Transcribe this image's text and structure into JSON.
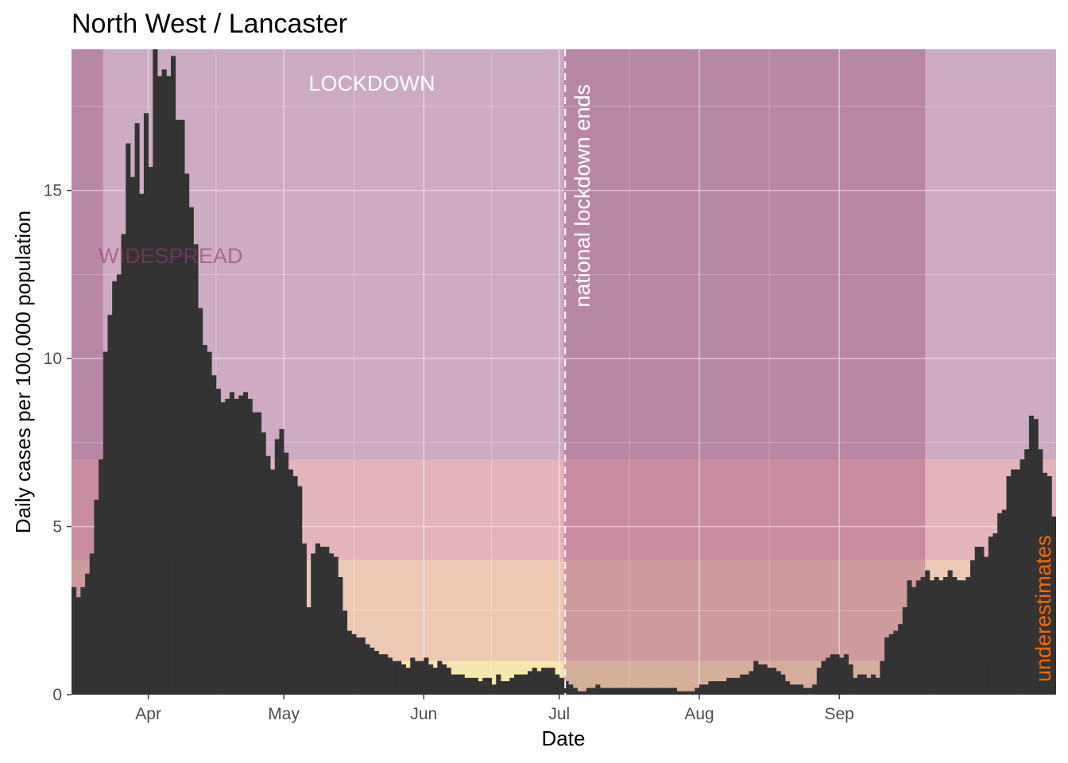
{
  "chart_data": {
    "type": "bar",
    "title": "North West / Lancaster",
    "xlabel": "Date",
    "ylabel": "Daily cases per 100,000 population",
    "x_ticks": [
      "Apr",
      "May",
      "Jun",
      "Jul",
      "Aug",
      "Sep"
    ],
    "x_tick_days": [
      17,
      47,
      78,
      108,
      139,
      170
    ],
    "y_ticks": [
      0,
      5,
      10,
      15
    ],
    "ylim": [
      0,
      19.2
    ],
    "grid": true,
    "first_day": "2020-03-15",
    "values": [
      3.2,
      2.9,
      3.2,
      3.6,
      4.2,
      5.8,
      7.0,
      10.2,
      11.3,
      12.3,
      12.5,
      13.7,
      16.4,
      15.4,
      17.0,
      14.9,
      17.3,
      15.7,
      19.2,
      18.4,
      18.6,
      18.4,
      19.0,
      17.1,
      17.1,
      15.5,
      14.5,
      13.4,
      11.5,
      10.4,
      10.2,
      9.5,
      9.1,
      8.7,
      8.8,
      9.0,
      8.8,
      8.9,
      9.0,
      8.8,
      8.4,
      8.4,
      7.8,
      7.1,
      6.7,
      7.6,
      7.9,
      7.2,
      6.7,
      6.5,
      6.2,
      4.5,
      2.6,
      4.2,
      4.5,
      4.4,
      4.4,
      4.2,
      4.1,
      3.5,
      2.5,
      1.9,
      1.8,
      1.7,
      1.7,
      1.5,
      1.4,
      1.3,
      1.2,
      1.2,
      1.1,
      1.0,
      1.0,
      0.9,
      0.8,
      1.1,
      1.0,
      1.0,
      1.1,
      0.9,
      0.8,
      1.0,
      0.9,
      0.8,
      0.6,
      0.6,
      0.6,
      0.5,
      0.5,
      0.5,
      0.4,
      0.5,
      0.5,
      0.3,
      0.6,
      0.4,
      0.4,
      0.5,
      0.6,
      0.6,
      0.6,
      0.7,
      0.8,
      0.7,
      0.8,
      0.8,
      0.8,
      0.6,
      0.5,
      0.4,
      0.3,
      0.2,
      0.1,
      0.1,
      0.2,
      0.2,
      0.3,
      0.2,
      0.2,
      0.2,
      0.2,
      0.2,
      0.2,
      0.2,
      0.2,
      0.2,
      0.2,
      0.2,
      0.2,
      0.2,
      0.2,
      0.2,
      0.2,
      0.2,
      0.1,
      0.1,
      0.1,
      0.1,
      0.2,
      0.3,
      0.3,
      0.4,
      0.4,
      0.4,
      0.4,
      0.5,
      0.5,
      0.5,
      0.6,
      0.6,
      0.7,
      1.0,
      0.9,
      0.9,
      0.8,
      0.8,
      0.7,
      0.6,
      0.4,
      0.3,
      0.3,
      0.3,
      0.2,
      0.2,
      0.3,
      0.8,
      1.0,
      1.1,
      1.2,
      1.2,
      1.1,
      1.2,
      0.9,
      0.5,
      0.6,
      0.6,
      0.5,
      0.6,
      0.5,
      1.0,
      1.7,
      1.8,
      1.9,
      2.1,
      2.6,
      3.4,
      3.2,
      3.4,
      3.5,
      3.7,
      3.4,
      3.5,
      3.4,
      3.5,
      3.7,
      3.5,
      3.4,
      3.4,
      3.5,
      4.0,
      4.4,
      4.4,
      4.1,
      4.7,
      4.8,
      5.4,
      5.5,
      6.5,
      6.7,
      6.7,
      7.0,
      7.3,
      8.3,
      8.2,
      7.3,
      6.6,
      6.5,
      5.3
    ],
    "background_bands": [
      {
        "from": 0,
        "to": 1,
        "color": "#f5e7b0"
      },
      {
        "from": 1,
        "to": 4,
        "color": "#ecc9b3"
      },
      {
        "from": 4,
        "to": 7,
        "color": "#e3b4bb"
      },
      {
        "from": 7,
        "to": 19.2,
        "color": "#cdabc2"
      }
    ],
    "shaded_periods": [
      {
        "from_day": 0,
        "to_day": 7,
        "color": "#8e3a6e",
        "opacity": 0.32
      },
      {
        "from_day": 109,
        "to_day": 189,
        "color": "#8e3a6e",
        "opacity": 0.32
      }
    ],
    "vline_day": 109.3,
    "annotations": {
      "lockdown": "LOCKDOWN",
      "lockdown_ends": "national lockdown ends",
      "spread": "WIDESPREAD",
      "underestimates": "underestimates"
    },
    "colors": {
      "bars": "#333333",
      "vline": "#ffffff",
      "underestimates": "#ff6600",
      "spread": "#8e3a6e"
    }
  }
}
